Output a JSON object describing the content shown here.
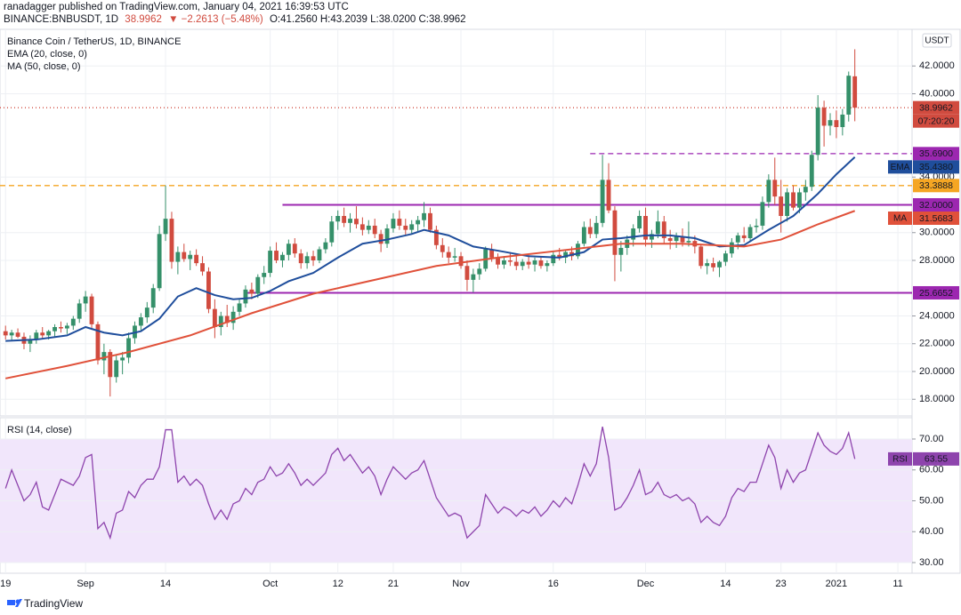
{
  "header": {
    "publisher": "ranadagger published on TradingView.com, January 04, 2021 16:39:53 UTC",
    "symbol": "BINANCE:BNBUSDT, 1D",
    "last": "38.9962",
    "change": "▼ −2.2613 (−5.48%)",
    "ohlc": "O:41.2560 H:43.2039 L:38.0200 C:38.9962"
  },
  "footer": {
    "brand": "TradingView"
  },
  "chart_data": [
    {
      "type": "candlestick",
      "title": "Binance Coin / TetherUS, 1D, BINANCE",
      "currency": "USDT",
      "up_color": "#35906a",
      "down_color": "#d14b3f",
      "grid": true,
      "candles": [
        [
          22.9,
          23.3,
          22.3,
          22.6
        ],
        [
          22.6,
          23.0,
          22.2,
          22.8
        ],
        [
          22.8,
          23.1,
          22.4,
          22.5
        ],
        [
          22.5,
          22.8,
          21.6,
          22.0
        ],
        [
          22.0,
          22.6,
          21.4,
          22.3
        ],
        [
          22.3,
          23.0,
          22.0,
          22.8
        ],
        [
          22.8,
          23.2,
          22.4,
          22.6
        ],
        [
          22.6,
          23.0,
          22.3,
          22.9
        ],
        [
          22.9,
          23.4,
          22.5,
          23.2
        ],
        [
          23.2,
          23.6,
          22.8,
          23.1
        ],
        [
          23.1,
          23.5,
          22.7,
          23.3
        ],
        [
          23.3,
          24.0,
          23.0,
          23.8
        ],
        [
          23.8,
          25.2,
          23.5,
          24.9
        ],
        [
          24.9,
          25.8,
          24.3,
          25.4
        ],
        [
          25.4,
          25.6,
          23.0,
          23.4
        ],
        [
          23.4,
          23.6,
          20.5,
          20.8
        ],
        [
          20.8,
          22.0,
          19.8,
          21.4
        ],
        [
          21.4,
          21.6,
          18.2,
          19.6
        ],
        [
          19.6,
          21.2,
          19.2,
          20.8
        ],
        [
          20.8,
          21.4,
          19.8,
          21.0
        ],
        [
          21.0,
          22.8,
          20.6,
          22.4
        ],
        [
          22.4,
          23.6,
          22.0,
          23.3
        ],
        [
          23.3,
          24.2,
          22.9,
          23.9
        ],
        [
          23.9,
          25.0,
          23.5,
          24.6
        ],
        [
          24.6,
          26.3,
          24.2,
          26.0
        ],
        [
          26.0,
          30.5,
          25.8,
          29.9
        ],
        [
          29.9,
          33.4,
          29.4,
          31.0
        ],
        [
          31.0,
          31.5,
          27.4,
          27.9
        ],
        [
          27.9,
          29.0,
          27.0,
          28.6
        ],
        [
          28.6,
          29.2,
          27.9,
          28.1
        ],
        [
          28.1,
          28.7,
          27.3,
          28.4
        ],
        [
          28.4,
          28.8,
          27.6,
          27.8
        ],
        [
          27.8,
          28.3,
          26.9,
          27.2
        ],
        [
          27.2,
          27.5,
          24.2,
          24.5
        ],
        [
          24.5,
          25.2,
          22.4,
          23.2
        ],
        [
          23.2,
          24.3,
          22.6,
          24.0
        ],
        [
          24.0,
          24.8,
          23.2,
          23.5
        ],
        [
          23.5,
          24.7,
          23.0,
          24.3
        ],
        [
          24.3,
          25.2,
          24.0,
          24.9
        ],
        [
          24.9,
          26.2,
          24.6,
          25.9
        ],
        [
          25.9,
          26.4,
          25.2,
          25.6
        ],
        [
          25.6,
          27.0,
          25.3,
          26.8
        ],
        [
          26.8,
          27.6,
          26.3,
          27.1
        ],
        [
          27.1,
          29.0,
          26.8,
          28.7
        ],
        [
          28.7,
          29.3,
          27.8,
          28.0
        ],
        [
          28.0,
          28.6,
          27.5,
          28.4
        ],
        [
          28.4,
          29.5,
          28.0,
          29.2
        ],
        [
          29.2,
          29.6,
          28.2,
          28.5
        ],
        [
          28.5,
          28.8,
          27.4,
          27.8
        ],
        [
          27.8,
          28.6,
          27.4,
          28.3
        ],
        [
          28.3,
          28.7,
          27.6,
          28.0
        ],
        [
          28.0,
          29.0,
          27.8,
          28.8
        ],
        [
          28.8,
          29.6,
          28.5,
          29.3
        ],
        [
          29.3,
          31.2,
          29.0,
          30.8
        ],
        [
          30.8,
          31.6,
          30.2,
          31.2
        ],
        [
          31.2,
          31.8,
          30.4,
          30.7
        ],
        [
          30.7,
          31.4,
          30.0,
          31.0
        ],
        [
          31.0,
          31.9,
          30.3,
          30.6
        ],
        [
          30.6,
          31.1,
          29.8,
          30.2
        ],
        [
          30.2,
          30.9,
          29.9,
          30.5
        ],
        [
          30.5,
          31.0,
          29.6,
          29.9
        ],
        [
          29.9,
          30.2,
          28.6,
          29.2
        ],
        [
          29.2,
          30.6,
          28.9,
          30.3
        ],
        [
          30.3,
          31.4,
          30.0,
          31.0
        ],
        [
          31.0,
          31.6,
          30.2,
          30.5
        ],
        [
          30.5,
          31.0,
          29.8,
          30.2
        ],
        [
          30.2,
          30.9,
          29.9,
          30.6
        ],
        [
          30.6,
          31.2,
          30.1,
          30.9
        ],
        [
          30.9,
          32.2,
          30.4,
          31.4
        ],
        [
          31.4,
          31.8,
          30.0,
          30.2
        ],
        [
          30.2,
          30.5,
          28.8,
          29.1
        ],
        [
          29.1,
          29.6,
          28.2,
          28.6
        ],
        [
          28.6,
          29.0,
          27.8,
          28.2
        ],
        [
          28.2,
          28.9,
          27.9,
          28.3
        ],
        [
          28.3,
          28.6,
          27.4,
          27.6
        ],
        [
          27.6,
          28.0,
          25.8,
          26.6
        ],
        [
          26.6,
          27.4,
          25.7,
          27.0
        ],
        [
          27.0,
          27.8,
          26.6,
          27.4
        ],
        [
          27.4,
          29.0,
          27.2,
          28.8
        ],
        [
          28.8,
          29.2,
          27.9,
          28.2
        ],
        [
          28.2,
          28.5,
          27.4,
          27.7
        ],
        [
          27.7,
          28.3,
          27.4,
          28.0
        ],
        [
          28.0,
          28.6,
          27.6,
          27.9
        ],
        [
          27.9,
          28.3,
          27.3,
          27.6
        ],
        [
          27.6,
          28.1,
          27.3,
          27.9
        ],
        [
          27.9,
          28.4,
          27.4,
          27.7
        ],
        [
          27.7,
          28.2,
          27.2,
          28.0
        ],
        [
          28.0,
          28.3,
          27.4,
          27.6
        ],
        [
          27.6,
          28.0,
          27.2,
          27.8
        ],
        [
          27.8,
          28.6,
          27.6,
          28.4
        ],
        [
          28.4,
          28.9,
          28.0,
          28.2
        ],
        [
          28.2,
          28.8,
          27.8,
          28.6
        ],
        [
          28.6,
          29.0,
          28.0,
          28.3
        ],
        [
          28.3,
          29.4,
          28.1,
          29.2
        ],
        [
          29.2,
          30.8,
          29.0,
          30.4
        ],
        [
          30.4,
          31.0,
          29.6,
          29.9
        ],
        [
          29.9,
          31.2,
          29.6,
          30.7
        ],
        [
          30.7,
          35.6,
          30.4,
          33.8
        ],
        [
          33.8,
          35.0,
          31.4,
          31.6
        ],
        [
          31.6,
          31.9,
          26.5,
          28.4
        ],
        [
          28.4,
          29.4,
          27.2,
          28.9
        ],
        [
          28.9,
          29.8,
          28.4,
          29.5
        ],
        [
          29.5,
          30.6,
          29.0,
          30.3
        ],
        [
          30.3,
          31.6,
          30.0,
          31.2
        ],
        [
          31.2,
          31.8,
          29.0,
          29.5
        ],
        [
          29.5,
          30.2,
          28.9,
          29.9
        ],
        [
          29.9,
          31.6,
          29.6,
          30.8
        ],
        [
          30.8,
          31.2,
          29.2,
          29.6
        ],
        [
          29.6,
          30.2,
          28.8,
          29.4
        ],
        [
          29.4,
          30.0,
          28.9,
          29.7
        ],
        [
          29.7,
          30.3,
          29.0,
          29.3
        ],
        [
          29.3,
          30.8,
          29.0,
          29.4
        ],
        [
          29.4,
          29.8,
          28.5,
          29.0
        ],
        [
          29.0,
          29.2,
          27.4,
          27.6
        ],
        [
          27.6,
          28.1,
          27.0,
          27.8
        ],
        [
          27.8,
          28.2,
          27.2,
          27.5
        ],
        [
          27.5,
          28.0,
          26.8,
          27.9
        ],
        [
          27.9,
          28.7,
          27.6,
          28.5
        ],
        [
          28.5,
          29.6,
          28.2,
          29.3
        ],
        [
          29.3,
          30.0,
          28.8,
          29.8
        ],
        [
          29.8,
          30.4,
          29.3,
          29.6
        ],
        [
          29.6,
          30.6,
          29.4,
          30.4
        ],
        [
          30.4,
          31.0,
          30.0,
          30.5
        ],
        [
          30.5,
          32.6,
          30.2,
          32.2
        ],
        [
          32.2,
          34.2,
          31.8,
          33.8
        ],
        [
          33.8,
          35.4,
          32.0,
          32.6
        ],
        [
          32.6,
          33.8,
          30.0,
          31.2
        ],
        [
          31.2,
          33.2,
          30.8,
          32.9
        ],
        [
          32.9,
          33.4,
          31.6,
          31.8
        ],
        [
          31.8,
          33.2,
          31.4,
          32.9
        ],
        [
          32.9,
          33.8,
          32.3,
          33.3
        ],
        [
          33.3,
          35.9,
          33.0,
          35.6
        ],
        [
          35.6,
          39.9,
          35.2,
          39.0
        ],
        [
          39.0,
          39.5,
          36.2,
          37.7
        ],
        [
          37.7,
          38.6,
          37.0,
          38.1
        ],
        [
          38.1,
          38.8,
          36.8,
          37.6
        ],
        [
          37.6,
          38.9,
          37.0,
          38.5
        ],
        [
          38.5,
          41.6,
          38.0,
          41.3
        ],
        [
          41.256,
          43.2039,
          38.02,
          38.9962
        ]
      ],
      "series": [
        {
          "name": "EMA (20, close, 0)",
          "color": "#1f4e9c",
          "x": [
            0,
            5,
            10,
            13,
            16,
            19,
            22,
            25,
            28,
            31,
            34,
            37,
            40,
            43,
            46,
            50,
            54,
            58,
            62,
            66,
            68,
            72,
            76,
            80,
            85,
            90,
            94,
            97,
            100,
            104,
            108,
            112,
            116,
            120,
            124,
            128,
            132,
            135,
            138
          ],
          "values": [
            22.2,
            22.3,
            22.6,
            23.2,
            22.8,
            22.6,
            22.9,
            23.8,
            25.4,
            26.0,
            25.5,
            25.2,
            25.3,
            25.8,
            26.5,
            27.1,
            28.2,
            29.2,
            29.5,
            29.9,
            30.2,
            29.8,
            29.0,
            28.7,
            28.3,
            28.2,
            28.6,
            29.5,
            29.6,
            29.8,
            29.8,
            29.6,
            29.0,
            29.1,
            30.2,
            31.2,
            32.8,
            34.2,
            35.438
          ],
          "end_label": {
            "tag": "EMA",
            "value": 35.438,
            "label": "35.4380"
          }
        },
        {
          "name": "MA (50, close, 0)",
          "color": "#e0513a",
          "x": [
            0,
            10,
            20,
            30,
            40,
            50,
            60,
            70,
            80,
            90,
            100,
            110,
            120,
            126,
            132,
            138
          ],
          "values": [
            19.5,
            20.4,
            21.4,
            22.6,
            24.2,
            25.6,
            26.6,
            27.6,
            28.2,
            28.7,
            29.2,
            29.2,
            29.0,
            29.5,
            30.6,
            31.5683
          ],
          "end_label": {
            "tag": "MA",
            "value": 31.5683,
            "label": "31.5683"
          }
        }
      ],
      "levels": [
        {
          "value": 38.9962,
          "label": "38.9962",
          "sublabel": "07:20:20",
          "color": "#d14b3f",
          "style": "dotted"
        },
        {
          "value": 35.69,
          "label": "35.6900",
          "color": "#9c27b0",
          "style": "dashed",
          "from": 95
        },
        {
          "value": 33.3888,
          "label": "33.3888",
          "color": "#f5a623",
          "style": "dashed",
          "from": -0.9
        },
        {
          "value": 32,
          "label": "32.0000",
          "color": "#9c27b0",
          "style": "solid",
          "from": 45
        },
        {
          "value": 25.6652,
          "label": "25.6652",
          "color": "#9c27b0",
          "style": "solid",
          "from": 39
        }
      ],
      "xlim": [
        -0.9,
        147.3
      ],
      "xticks": [
        {
          "value": 0,
          "label": "19"
        },
        {
          "value": 13,
          "label": "Sep"
        },
        {
          "value": 26,
          "label": "14"
        },
        {
          "value": 43,
          "label": "Oct"
        },
        {
          "value": 54,
          "label": "12"
        },
        {
          "value": 63,
          "label": "21"
        },
        {
          "value": 74,
          "label": "Nov"
        },
        {
          "value": 89,
          "label": "16"
        },
        {
          "value": 104,
          "label": "Dec"
        },
        {
          "value": 117,
          "label": "14"
        },
        {
          "value": 126,
          "label": "23"
        },
        {
          "value": 135,
          "label": "2021"
        },
        {
          "value": 145,
          "label": "11"
        }
      ],
      "ylim": [
        16.8,
        44.64
      ],
      "yticks": [
        {
          "value": 18,
          "label": "18.0000"
        },
        {
          "value": 20,
          "label": "20.0000"
        },
        {
          "value": 22,
          "label": "22.0000"
        },
        {
          "value": 24,
          "label": "24.0000"
        },
        {
          "value": 28,
          "label": "28.0000"
        },
        {
          "value": 30,
          "label": "30.0000"
        },
        {
          "value": 34,
          "label": "34.0000"
        },
        {
          "value": 40,
          "label": "40.0000"
        },
        {
          "value": 42,
          "label": "42.0000"
        }
      ]
    },
    {
      "type": "line",
      "title": "RSI (14, close)",
      "color": "#8e44ad",
      "grid": true,
      "band": [
        30,
        70
      ],
      "band_color": "#f1e6fb",
      "values": [
        54,
        60,
        55,
        50,
        52,
        56,
        48,
        47,
        52,
        57,
        56,
        55,
        58,
        64,
        65,
        41,
        43,
        38,
        46,
        47,
        53,
        51,
        55,
        57,
        57,
        61,
        73,
        73,
        56,
        58,
        55,
        57,
        55,
        49,
        44,
        47,
        44,
        49,
        50,
        54,
        52,
        56,
        57,
        61,
        58,
        59,
        62,
        59,
        55,
        57,
        55,
        57,
        59,
        65,
        67,
        63,
        65,
        62,
        59,
        61,
        58,
        52,
        57,
        61,
        59,
        57,
        59,
        60,
        63,
        57,
        51,
        48,
        45,
        46,
        45,
        38,
        40,
        42,
        52,
        49,
        46,
        48,
        47,
        45,
        47,
        46,
        48,
        45,
        47,
        50,
        48,
        51,
        49,
        55,
        62,
        58,
        62,
        74,
        64,
        47,
        48,
        51,
        55,
        60,
        52,
        53,
        56,
        52,
        51,
        52,
        50,
        51,
        49,
        43,
        45,
        43,
        42,
        45,
        51,
        54,
        53,
        56,
        56,
        62,
        68,
        64,
        54,
        60,
        56,
        59,
        60,
        66,
        72,
        68,
        66,
        65,
        67,
        72,
        63.55
      ],
      "end_label": {
        "tag": "RSI",
        "value": 63.55,
        "label": "63.55"
      },
      "ylim": [
        26.55,
        76.9
      ],
      "yticks": [
        {
          "value": 30,
          "label": "30.00"
        },
        {
          "value": 40,
          "label": "40.00"
        },
        {
          "value": 50,
          "label": "50.00"
        },
        {
          "value": 60,
          "label": "60.00"
        },
        {
          "value": 70,
          "label": "70.00"
        }
      ]
    }
  ]
}
